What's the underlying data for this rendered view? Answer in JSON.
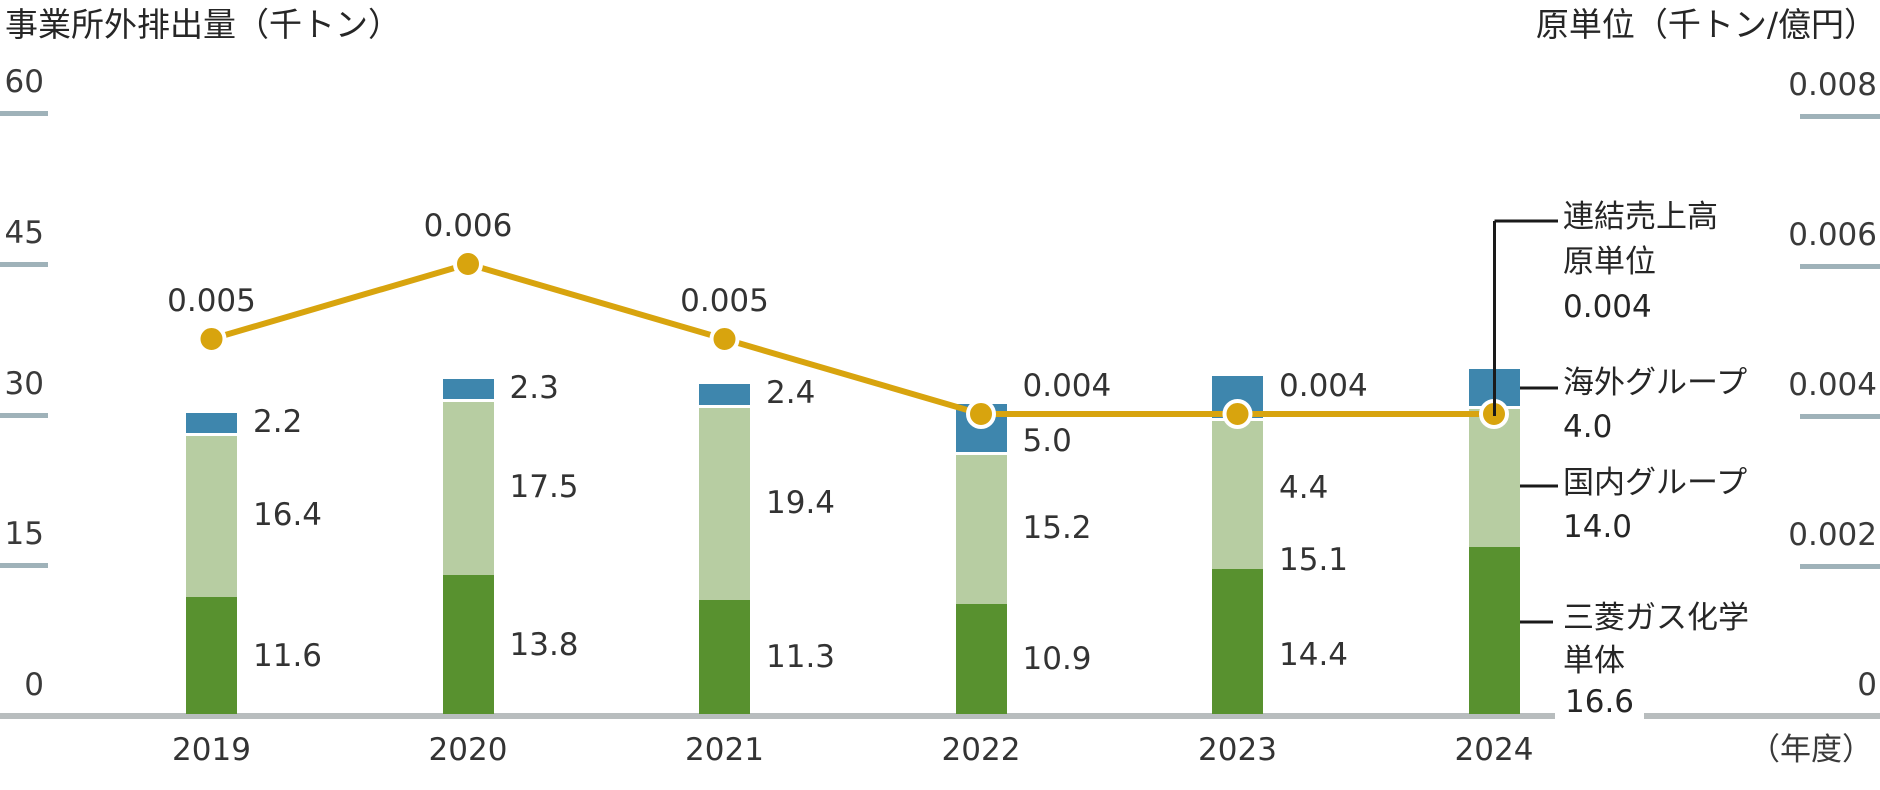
{
  "x_axis_unit": "（年度）",
  "colors": {
    "single": "#58912f",
    "domestic": "#b7cda2",
    "overseas": "#3e86ad",
    "line": "#d8a40e",
    "dot_ring": "#ffffff",
    "separator": "#ffffff",
    "tick_line": "#9fb2b9",
    "baseline": "#b8bdbe",
    "connector": "#1a1a1a",
    "text": "#303030"
  },
  "chart_data": {
    "type": "stacked-bar-line",
    "categories": [
      "2019",
      "2020",
      "2021",
      "2022",
      "2023",
      "2024"
    ],
    "bar_series": [
      {
        "name": "三菱ガス化学単体",
        "key": "single",
        "values": [
          11.6,
          13.8,
          11.3,
          10.9,
          14.4,
          16.6
        ]
      },
      {
        "name": "国内グループ",
        "key": "domestic",
        "values": [
          16.4,
          17.5,
          19.4,
          15.2,
          15.1,
          14.0
        ]
      },
      {
        "name": "海外グループ",
        "key": "overseas",
        "values": [
          2.2,
          2.3,
          2.4,
          5.0,
          4.4,
          4.0
        ]
      }
    ],
    "line_series": {
      "name": "連結売上高原単位",
      "key": "line",
      "values": [
        0.005,
        0.006,
        0.005,
        0.004,
        0.004,
        0.004
      ]
    },
    "left_axis": {
      "title": "事業所外排出量（千トン）",
      "ticks": [
        60,
        45,
        30,
        15,
        0
      ],
      "range": [
        0,
        60
      ],
      "grid": false
    },
    "right_axis": {
      "title": "原単位（千トン/億円）",
      "ticks": [
        0.008,
        0.006,
        0.004,
        0.002,
        0
      ],
      "range": [
        0,
        0.008
      ]
    },
    "legend_position": "right-callout"
  },
  "legend": {
    "line": {
      "l1": "連結売上高",
      "l2": "原単位",
      "value": "0.004"
    },
    "overseas": {
      "l1": "海外グループ",
      "value": "4.0"
    },
    "domestic": {
      "l1": "国内グループ",
      "value": "14.0"
    },
    "single": {
      "l1": "三菱ガス化学",
      "l2": "単体",
      "value": "16.6"
    }
  }
}
